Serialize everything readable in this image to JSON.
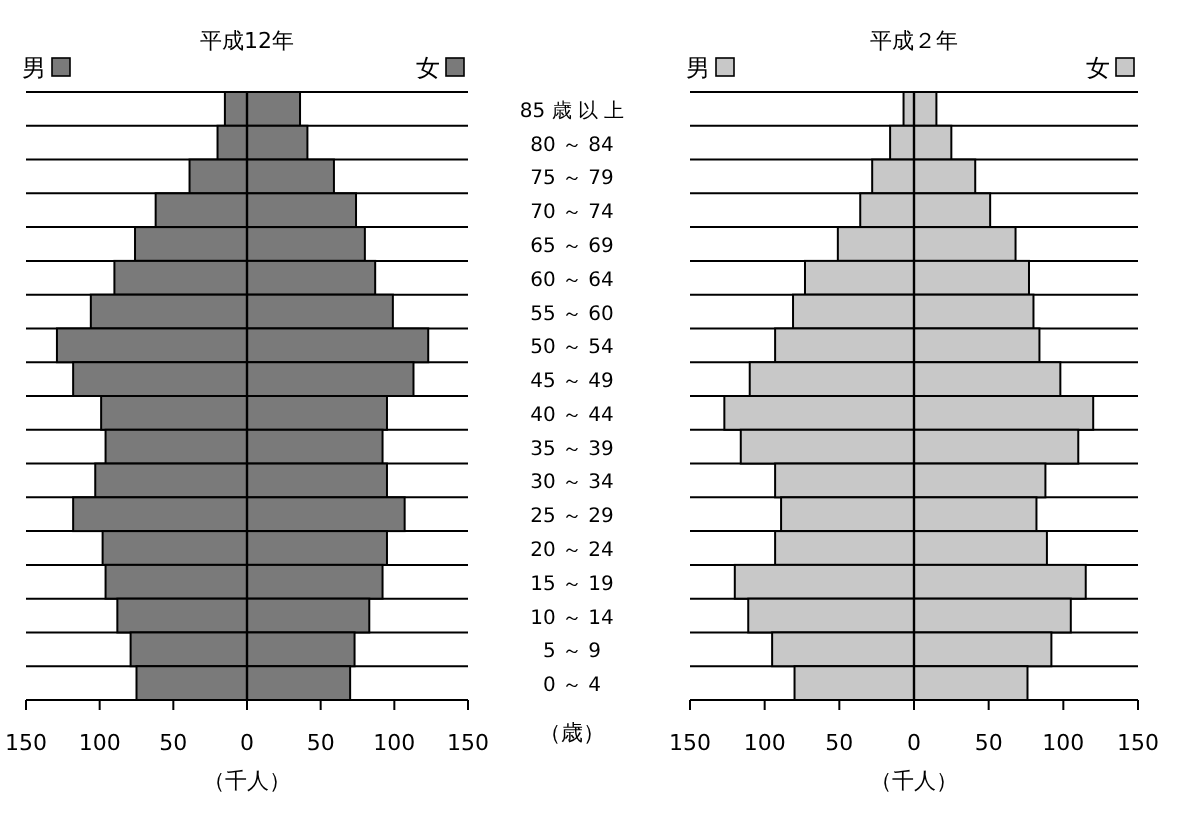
{
  "chart_data": [
    {
      "type": "bar",
      "orientation": "horizontal",
      "stacked": true,
      "legend": "top",
      "title": "平成12年",
      "xlabel": "（千人）",
      "ylabel": "（歳）",
      "grid": "y",
      "tick_labels": "xy",
      "categories": [
        "85 歳 以 上",
        "80 ～ 84",
        "75 ～ 79",
        "70 ～ 74",
        "65 ～ 69",
        "60 ～ 64",
        "55 ～ 60",
        "50 ～ 54",
        "45 ～ 49",
        "40 ～ 44",
        "35 ～ 39",
        "30 ～ 34",
        "25 ～ 29",
        "20 ～ 24",
        "15 ～ 19",
        "10 ～ 14",
        "5 ～ 9",
        "0 ～ 4"
      ],
      "xlim": [
        -150,
        150
      ],
      "xticks": [
        {
          "value": -150,
          "label": "150"
        },
        {
          "value": -100,
          "label": "100"
        },
        {
          "value": -50,
          "label": "50"
        },
        0,
        50,
        100,
        150
      ],
      "series": [
        {
          "name": "男",
          "color": "#7a7a7a",
          "values": [
            -15,
            -20,
            -39,
            -62,
            -76,
            -90,
            -106,
            -129,
            -118,
            -99,
            -96,
            -103,
            -118,
            -98,
            -96,
            -88,
            -79,
            -75
          ]
        },
        {
          "name": "女",
          "color": "#7a7a7a",
          "values": [
            36,
            41,
            59,
            74,
            80,
            87,
            99,
            123,
            113,
            95,
            92,
            95,
            107,
            95,
            92,
            83,
            73,
            70
          ]
        }
      ]
    },
    {
      "type": "bar",
      "orientation": "horizontal",
      "stacked": true,
      "legend": "top",
      "title": "平成２年",
      "xlabel": "（千人）",
      "grid": "y",
      "tick_labels": "x",
      "categories": [
        "85 歳 以 上",
        "80 ～ 84",
        "75 ～ 79",
        "70 ～ 74",
        "65 ～ 69",
        "60 ～ 64",
        "55 ～ 60",
        "50 ～ 54",
        "45 ～ 49",
        "40 ～ 44",
        "35 ～ 39",
        "30 ～ 34",
        "25 ～ 29",
        "20 ～ 24",
        "15 ～ 19",
        "10 ～ 14",
        "5 ～ 9",
        "0 ～ 4"
      ],
      "xlim": [
        -150,
        150
      ],
      "xticks": [
        {
          "value": -150,
          "label": "150"
        },
        {
          "value": -100,
          "label": "100"
        },
        {
          "value": -50,
          "label": "50"
        },
        0,
        50,
        100,
        150
      ],
      "series": [
        {
          "name": "男",
          "color": "#c8c8c8",
          "values": [
            -7,
            -16,
            -28,
            -36,
            -51,
            -73,
            -81,
            -93,
            -110,
            -127,
            -116,
            -93,
            -89,
            -93,
            -120,
            -111,
            -95,
            -80
          ]
        },
        {
          "name": "女",
          "color": "#c8c8c8",
          "values": [
            15,
            25,
            41,
            51,
            68,
            77,
            80,
            84,
            98,
            120,
            110,
            88,
            82,
            89,
            115,
            105,
            92,
            76
          ]
        }
      ]
    }
  ]
}
